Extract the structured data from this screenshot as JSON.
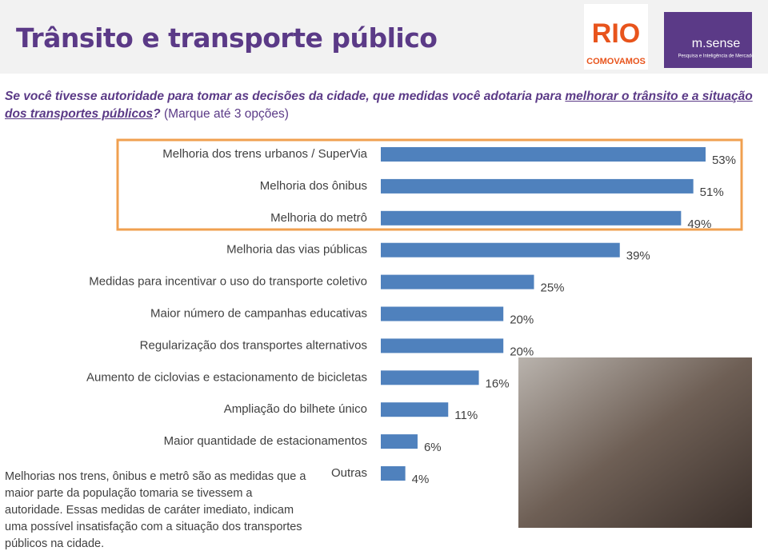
{
  "chart_data": {
    "type": "bar",
    "orientation": "horizontal",
    "title": "Trânsito e transporte público",
    "question": {
      "main": "Se você tivesse autoridade para tomar as decisões da cidade, que medidas você adotaria para ",
      "underlined": "melhorar o trânsito e a situação dos transportes públicos",
      "mark": "?",
      "instruction": "(Marque até 3 opções)"
    },
    "categories": [
      "Melhoria dos trens urbanos / SuperVia",
      "Melhoria dos ônibus",
      "Melhoria do metrô",
      "Melhoria das vias públicas",
      "Medidas para incentivar o uso do transporte coletivo",
      "Maior número de campanhas educativas",
      "Regularização dos transportes alternativos",
      "Aumento de ciclovias e estacionamento de bicicletas",
      "Ampliação do bilhete único",
      "Maior quantidade de estacionamentos",
      "Outras"
    ],
    "values": [
      53,
      51,
      49,
      39,
      25,
      20,
      20,
      16,
      11,
      6,
      4
    ],
    "value_labels": [
      "53%",
      "51%",
      "49%",
      "39%",
      "25%",
      "20%",
      "20%",
      "16%",
      "11%",
      "6%",
      "4%"
    ],
    "color": "#4f81bd",
    "highlight_color": "#f0a050",
    "note": "Melhorias nos trens, ônibus e metrô são as medidas que a maior parte da população tomaria se tivessem a autoridade. Essas medidas de caráter imediato, indicam uma possível insatisfação com a situação dos transportes públicos na cidade.",
    "logos": {
      "rio": "RIO",
      "como_vamos": "COMOVAMOS",
      "msense": "m.sense",
      "msense_sub": "Pesquisa e Inteligência de Mercado"
    }
  }
}
